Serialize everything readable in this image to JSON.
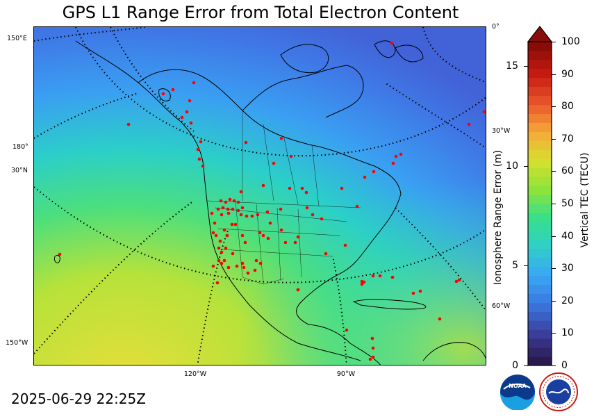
{
  "title": "GPS L1 Range Error from Total Electron Content",
  "timestamp": "2025-06-29 22:25Z",
  "map": {
    "left_labels": [
      "150°E",
      "180°",
      "30°N",
      "150°W"
    ],
    "right_labels": [
      "0°",
      "30°W",
      "60°W"
    ],
    "bottom_labels": [
      "120°W",
      "90°W"
    ],
    "station_color": "#ff0000"
  },
  "colorbar": {
    "right_title": "Vertical TEC (TECU)",
    "left_title": "Ionosphere Range Error (m)",
    "right_ticks": [
      "100",
      "90",
      "80",
      "70",
      "60",
      "50",
      "40",
      "30",
      "20",
      "10",
      "0"
    ],
    "left_ticks": [
      "15",
      "10",
      "5",
      "0"
    ],
    "stops": [
      "#2b1a4e",
      "#3b3f9e",
      "#3a78e0",
      "#3aa6f5",
      "#2fd0c8",
      "#36e08a",
      "#8ee33a",
      "#d6e02e",
      "#f5a93a",
      "#e8572a",
      "#c81c12",
      "#8a0c08"
    ]
  },
  "logos": {
    "noaa_text": "NOAA",
    "nws_text": "NATIONAL WEATHER SERVICE"
  }
}
